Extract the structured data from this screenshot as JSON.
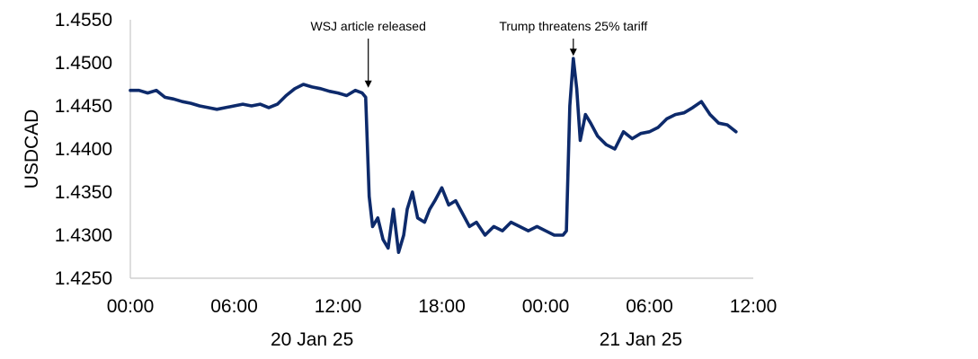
{
  "chart_data": {
    "type": "line",
    "title": "",
    "ylabel": "USDCAD",
    "xlabel": "",
    "ylim": [
      1.425,
      1.455
    ],
    "xlim_hours": [
      0,
      36
    ],
    "grid": false,
    "legend": "none",
    "line_color": "#0d2a6b",
    "y_ticks": [
      "1.4250",
      "1.4300",
      "1.4350",
      "1.4400",
      "1.4450",
      "1.4500",
      "1.4550"
    ],
    "y_tick_values": [
      1.425,
      1.43,
      1.435,
      1.44,
      1.445,
      1.45,
      1.455
    ],
    "x_ticks": [
      "00:00",
      "06:00",
      "12:00",
      "18:00",
      "00:00",
      "06:00",
      "12:00"
    ],
    "x_tick_hours": [
      0,
      6,
      12,
      18,
      24,
      30,
      36
    ],
    "date_labels": [
      {
        "text": "20 Jan 25",
        "hour": 10.5
      },
      {
        "text": "21 Jan 25",
        "hour": 29.5
      }
    ],
    "annotations": [
      {
        "text": "WSJ article released",
        "hour": 13.75,
        "value": 1.4468
      },
      {
        "text": "Trump threatens 25% tariff",
        "hour": 25.6,
        "value": 1.4505
      }
    ],
    "series": [
      {
        "x_hours": [
          0.0,
          0.5,
          1.0,
          1.5,
          2.0,
          2.5,
          3.0,
          3.5,
          4.0,
          4.5,
          5.0,
          5.5,
          6.0,
          6.5,
          7.0,
          7.5,
          8.0,
          8.5,
          9.0,
          9.5,
          10.0,
          10.5,
          11.0,
          11.5,
          12.0,
          12.5,
          13.0,
          13.4,
          13.6,
          13.8,
          14.0,
          14.3,
          14.6,
          14.9,
          15.2,
          15.5,
          15.8,
          16.0,
          16.3,
          16.6,
          17.0,
          17.3,
          17.6,
          18.0,
          18.4,
          18.8,
          19.2,
          19.6,
          20.0,
          20.5,
          21.0,
          21.5,
          22.0,
          22.5,
          23.0,
          23.5,
          24.0,
          24.5,
          25.0,
          25.2,
          25.4,
          25.6,
          25.8,
          26.0,
          26.3,
          26.6,
          27.0,
          27.5,
          28.0,
          28.5,
          29.0,
          29.5,
          30.0,
          30.5,
          31.0,
          31.5,
          32.0,
          32.5,
          33.0,
          33.5,
          34.0,
          34.5,
          35.0
        ],
        "values": [
          1.4468,
          1.4468,
          1.4465,
          1.4468,
          1.446,
          1.4458,
          1.4455,
          1.4453,
          1.445,
          1.4448,
          1.4446,
          1.4448,
          1.445,
          1.4452,
          1.445,
          1.4452,
          1.4448,
          1.4452,
          1.4462,
          1.447,
          1.4475,
          1.4472,
          1.447,
          1.4467,
          1.4465,
          1.4462,
          1.4468,
          1.4465,
          1.446,
          1.4345,
          1.431,
          1.432,
          1.4295,
          1.4285,
          1.433,
          1.428,
          1.43,
          1.433,
          1.435,
          1.432,
          1.4315,
          1.433,
          1.434,
          1.4355,
          1.4335,
          1.434,
          1.4325,
          1.431,
          1.4315,
          1.43,
          1.431,
          1.4305,
          1.4315,
          1.431,
          1.4305,
          1.431,
          1.4305,
          1.43,
          1.43,
          1.4305,
          1.445,
          1.4505,
          1.447,
          1.441,
          1.444,
          1.443,
          1.4415,
          1.4405,
          1.44,
          1.442,
          1.4412,
          1.4418,
          1.442,
          1.4425,
          1.4435,
          1.444,
          1.4442,
          1.4448,
          1.4455,
          1.444,
          1.443,
          1.4428,
          1.442
        ]
      }
    ]
  }
}
